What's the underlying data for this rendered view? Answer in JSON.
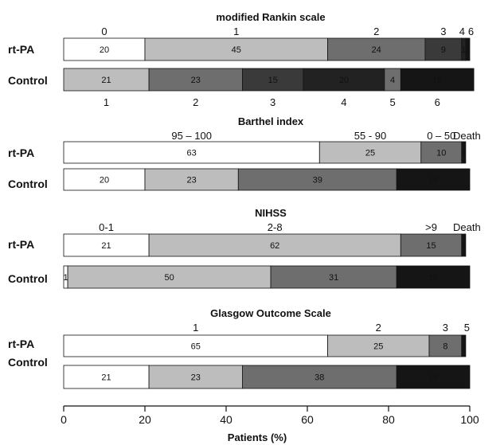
{
  "colors": {
    "shade1": "#ffffff",
    "shade2": "#bdbdbd",
    "shade3": "#6e6e6e",
    "shade4": "#3a3a3a",
    "shade5": "#222222",
    "shade6": "#151515",
    "border": "#111111"
  },
  "chart_data": [
    {
      "type": "bar",
      "title": "modified Rankin scale",
      "rows": [
        {
          "label": "rt-PA",
          "values": [
            20,
            45,
            24,
            9,
            1,
            1
          ],
          "shades": [
            1,
            2,
            3,
            4,
            5,
            6
          ],
          "labels": [
            "20",
            "45",
            "24",
            "9",
            "1",
            "1"
          ],
          "categories": [
            "0",
            "1",
            "2",
            "3",
            "4",
            "6"
          ]
        },
        {
          "label": "Control",
          "values": [
            21,
            23,
            15,
            20,
            4,
            18
          ],
          "shades": [
            2,
            3,
            4,
            5,
            3,
            6
          ],
          "labels": [
            "21",
            "23",
            "15",
            "20",
            "4",
            "18"
          ],
          "categories": [
            "1",
            "2",
            "3",
            "4",
            "5",
            "6"
          ]
        }
      ]
    },
    {
      "type": "bar",
      "title": "Barthel index",
      "rows": [
        {
          "label": "rt-PA",
          "values": [
            63,
            25,
            10,
            1
          ],
          "shades": [
            1,
            2,
            3,
            6
          ],
          "labels": [
            "63",
            "25",
            "10",
            "1"
          ],
          "categories": [
            "95 – 100",
            "55 - 90",
            "0 – 50",
            "Death"
          ]
        },
        {
          "label": "Control",
          "values": [
            20,
            23,
            39,
            18
          ],
          "shades": [
            1,
            2,
            3,
            6
          ],
          "labels": [
            "20",
            "23",
            "39",
            "18"
          ],
          "categories": []
        }
      ]
    },
    {
      "type": "bar",
      "title": "NIHSS",
      "rows": [
        {
          "label": "rt-PA",
          "values": [
            21,
            62,
            15,
            1
          ],
          "shades": [
            1,
            2,
            3,
            6
          ],
          "labels": [
            "21",
            "62",
            "15",
            "1"
          ],
          "categories": [
            "0-1",
            "2-8",
            ">9",
            "Death"
          ]
        },
        {
          "label": "Control",
          "values": [
            1,
            50,
            31,
            18
          ],
          "shades": [
            1,
            2,
            3,
            6
          ],
          "labels": [
            "1",
            "50",
            "31",
            "18"
          ],
          "categories": []
        }
      ]
    },
    {
      "type": "bar",
      "title": "Glasgow Outcome Scale",
      "rows": [
        {
          "label": "rt-PA",
          "values": [
            65,
            25,
            8,
            1
          ],
          "shades": [
            1,
            2,
            3,
            6
          ],
          "labels": [
            "65",
            "25",
            "8",
            "1"
          ],
          "categories": [
            "1",
            "2",
            "3",
            "5"
          ]
        },
        {
          "label": "Control",
          "values": [
            21,
            23,
            38,
            18
          ],
          "shades": [
            1,
            2,
            3,
            6
          ],
          "labels": [
            "21",
            "23",
            "38",
            "18"
          ],
          "categories": []
        }
      ]
    }
  ],
  "x_axis": {
    "title": "Patients (%)",
    "ticks": [
      "0",
      "20",
      "40",
      "60",
      "80",
      "100"
    ],
    "range": [
      0,
      100
    ]
  }
}
